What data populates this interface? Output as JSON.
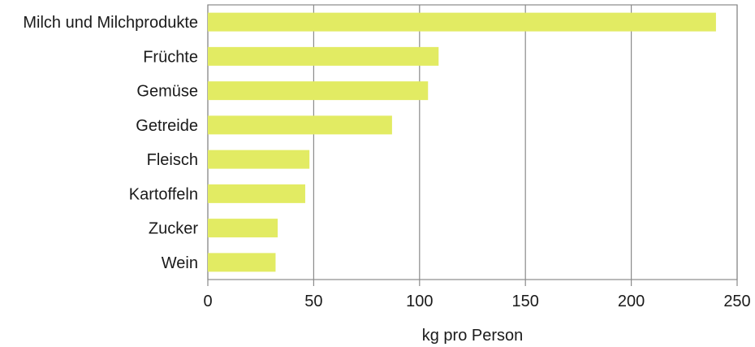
{
  "chart_data": {
    "type": "bar",
    "orientation": "horizontal",
    "categories": [
      "Milch und Milchprodukte",
      "Früchte",
      "Gemüse",
      "Getreide",
      "Fleisch",
      "Kartoffeln",
      "Zucker",
      "Wein"
    ],
    "values": [
      240,
      109,
      104,
      87,
      48,
      46,
      33,
      32
    ],
    "xlabel": "kg pro Person",
    "ylabel": "",
    "xlim": [
      0,
      250
    ],
    "xticks": [
      "0",
      "50",
      "100",
      "150",
      "200",
      "250"
    ],
    "grid": true,
    "legend": "none",
    "bar_color": "#e2eb63"
  }
}
